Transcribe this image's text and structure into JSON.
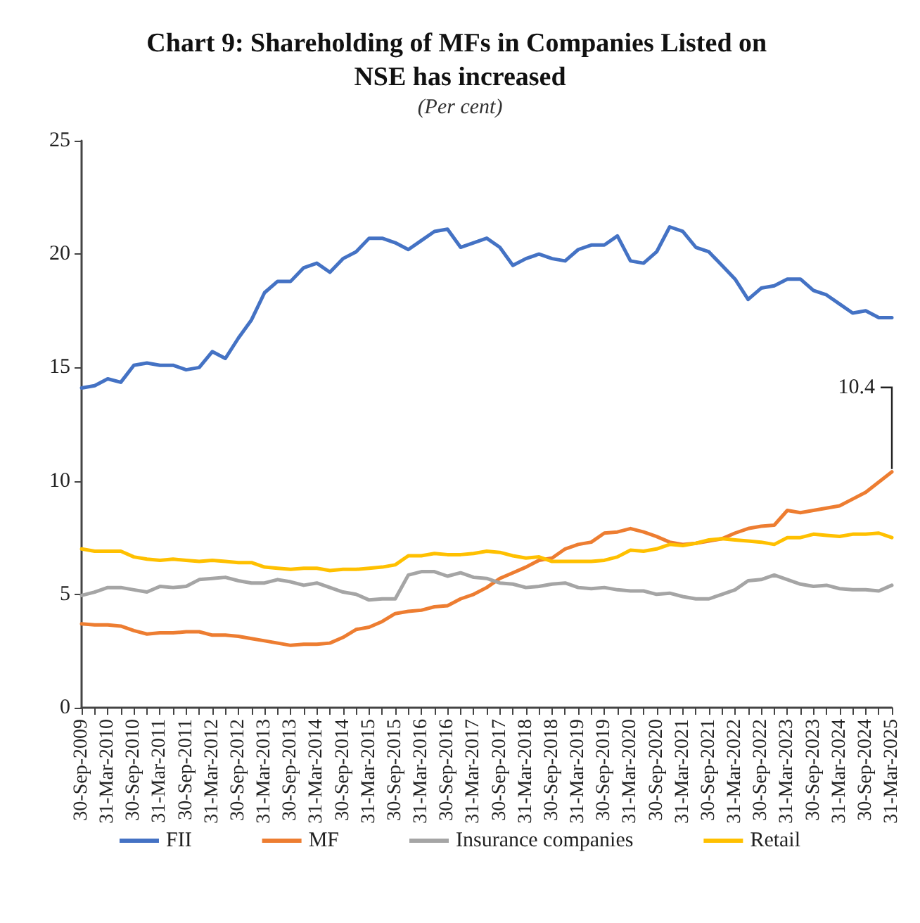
{
  "chart_data": {
    "type": "line",
    "title": "Chart 9: Shareholding of MFs in Companies Listed on NSE has increased",
    "subtitle": "(Per cent)",
    "categories": [
      "30-Sep-2009",
      null,
      "31-Mar-2010",
      null,
      "30-Sep-2010",
      null,
      "31-Mar-2011",
      null,
      "30-Sep-2011",
      null,
      "31-Mar-2012",
      null,
      "30-Sep-2012",
      null,
      "31-Mar-2013",
      null,
      "30-Sep-2013",
      null,
      "31-Mar-2014",
      null,
      "30-Sep-2014",
      null,
      "31-Mar-2015",
      null,
      "30-Sep-2015",
      null,
      "31-Mar-2016",
      null,
      "30-Sep-2016",
      null,
      "31-Mar-2017",
      null,
      "30-Sep-2017",
      null,
      "31-Mar-2018",
      null,
      "30-Sep-2018",
      null,
      "31-Mar-2019",
      null,
      "30-Sep-2019",
      null,
      "31-Mar-2020",
      null,
      "30-Sep-2020",
      null,
      "31-Mar-2021",
      null,
      "30-Sep-2021",
      null,
      "31-Mar-2022",
      null,
      "30-Sep-2022",
      null,
      "31-Mar-2023",
      null,
      "30-Sep-2023",
      null,
      "31-Mar-2024",
      null,
      "30-Sep-2024",
      null,
      "31-Mar-2025"
    ],
    "series": [
      {
        "name": "FII",
        "color": "#4472c4",
        "values": [
          14.1,
          14.2,
          14.5,
          14.35,
          15.1,
          15.2,
          15.1,
          15.1,
          14.9,
          15.0,
          15.7,
          15.4,
          16.3,
          17.1,
          18.3,
          18.8,
          18.8,
          19.4,
          19.6,
          19.2,
          19.8,
          20.1,
          20.7,
          20.7,
          20.5,
          20.2,
          20.6,
          21.0,
          21.1,
          20.3,
          20.5,
          20.7,
          20.3,
          19.5,
          19.8,
          20.0,
          19.8,
          19.7,
          20.2,
          20.4,
          20.4,
          20.8,
          19.7,
          19.6,
          20.1,
          21.2,
          21.0,
          20.3,
          20.1,
          19.5,
          18.9,
          18.0,
          18.5,
          18.6,
          18.9,
          18.9,
          18.4,
          18.2,
          17.8,
          17.4,
          17.5,
          17.2,
          17.2
        ]
      },
      {
        "name": "MF",
        "color": "#ed7d31",
        "values": [
          3.7,
          3.65,
          3.65,
          3.6,
          3.4,
          3.25,
          3.3,
          3.3,
          3.35,
          3.35,
          3.2,
          3.2,
          3.15,
          3.05,
          2.95,
          2.85,
          2.75,
          2.8,
          2.8,
          2.85,
          3.1,
          3.45,
          3.55,
          3.8,
          4.15,
          4.25,
          4.3,
          4.45,
          4.5,
          4.8,
          5.0,
          5.3,
          5.7,
          5.95,
          6.2,
          6.5,
          6.6,
          7.0,
          7.2,
          7.3,
          7.7,
          7.75,
          7.9,
          7.75,
          7.55,
          7.3,
          7.2,
          7.25,
          7.35,
          7.45,
          7.7,
          7.9,
          8.0,
          8.05,
          8.7,
          8.6,
          8.7,
          8.8,
          8.9,
          9.2,
          9.5,
          9.95,
          10.4
        ]
      },
      {
        "name": "Insurance companies",
        "color": "#a5a5a5",
        "values": [
          4.95,
          5.1,
          5.3,
          5.3,
          5.2,
          5.1,
          5.35,
          5.3,
          5.35,
          5.65,
          5.7,
          5.75,
          5.6,
          5.5,
          5.5,
          5.65,
          5.55,
          5.4,
          5.5,
          5.3,
          5.1,
          5.0,
          4.75,
          4.8,
          4.8,
          5.85,
          6.0,
          6.0,
          5.8,
          5.95,
          5.75,
          5.7,
          5.5,
          5.45,
          5.3,
          5.35,
          5.45,
          5.5,
          5.3,
          5.25,
          5.3,
          5.2,
          5.15,
          5.15,
          5.0,
          5.05,
          4.9,
          4.8,
          4.8,
          5.0,
          5.2,
          5.6,
          5.65,
          5.85,
          5.65,
          5.45,
          5.35,
          5.4,
          5.25,
          5.2,
          5.2,
          5.15,
          5.4
        ]
      },
      {
        "name": "Retail",
        "color": "#ffc000",
        "values": [
          7.0,
          6.9,
          6.9,
          6.9,
          6.65,
          6.55,
          6.5,
          6.55,
          6.5,
          6.45,
          6.5,
          6.45,
          6.4,
          6.4,
          6.2,
          6.15,
          6.1,
          6.15,
          6.15,
          6.05,
          6.1,
          6.1,
          6.15,
          6.2,
          6.3,
          6.7,
          6.7,
          6.8,
          6.75,
          6.75,
          6.8,
          6.9,
          6.85,
          6.7,
          6.6,
          6.65,
          6.45,
          6.45,
          6.45,
          6.45,
          6.5,
          6.65,
          6.95,
          6.9,
          7.0,
          7.2,
          7.15,
          7.25,
          7.4,
          7.45,
          7.4,
          7.35,
          7.3,
          7.2,
          7.5,
          7.5,
          7.65,
          7.6,
          7.55,
          7.65,
          7.65,
          7.7,
          7.5
        ]
      }
    ],
    "ylim": [
      0,
      25
    ],
    "yticks": [
      0,
      5,
      10,
      15,
      20,
      25
    ],
    "grid": false,
    "legend": "bottom",
    "marker": "none",
    "line_style": "solid",
    "annotations": [
      {
        "text": "10.4",
        "x": "31-Mar-2025",
        "y": 10.4
      }
    ]
  }
}
